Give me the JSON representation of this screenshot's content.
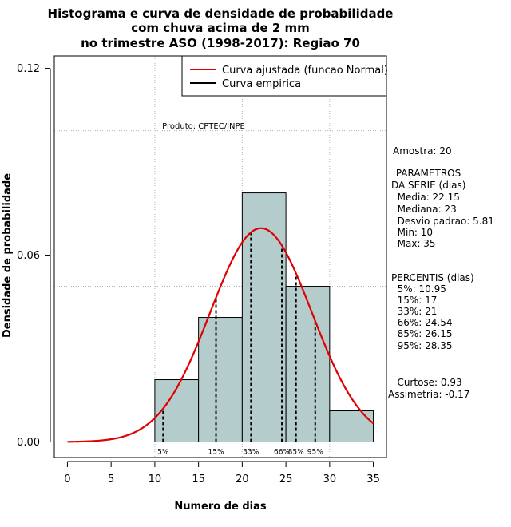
{
  "chart_data": {
    "type": "histogram",
    "title": [
      "Histograma e curva de densidade de probabilidade",
      "com chuva acima de 2 mm",
      "no trimestre ASO (1998-2017): Regiao 70"
    ],
    "xlabel": "Numero de dias",
    "ylabel": "Densidade de probabilidade",
    "xlim": [
      -1.5,
      36.5
    ],
    "ylim": [
      -0.005,
      0.124
    ],
    "xticks": [
      0,
      5,
      10,
      15,
      20,
      25,
      30,
      35
    ],
    "xtick_labels": [
      "0",
      "5",
      "10",
      "15",
      "20",
      "25",
      "30",
      "35"
    ],
    "yticks": [
      0.0,
      0.06,
      0.12
    ],
    "ytick_labels": [
      "0.00",
      "0.06",
      "0.12"
    ],
    "bins": [
      {
        "start": 10,
        "end": 15,
        "density": 0.02
      },
      {
        "start": 15,
        "end": 20,
        "density": 0.04
      },
      {
        "start": 20,
        "end": 25,
        "density": 0.08
      },
      {
        "start": 25,
        "end": 30,
        "density": 0.05
      },
      {
        "start": 30,
        "end": 35,
        "density": 0.01
      }
    ],
    "bar_color": "#b5cccc",
    "curve_color": "#e00000",
    "normal_fit": {
      "mean": 22.15,
      "sd": 5.81,
      "from": 0,
      "to": 35
    },
    "grid_x": [
      10,
      20,
      30
    ],
    "grid_y": [
      0.0,
      0.05,
      0.1
    ],
    "percentiles": [
      {
        "label": "5%",
        "x": 10.95
      },
      {
        "label": "15%",
        "x": 17
      },
      {
        "label": "33%",
        "x": 21
      },
      {
        "label": "66%",
        "x": 24.54
      },
      {
        "label": "85%",
        "x": 26.15
      },
      {
        "label": "95%",
        "x": 28.35
      }
    ],
    "legend": {
      "position": "top-right",
      "entries": [
        {
          "label": "Curva ajustada (funcao Normal)",
          "color": "#e00000"
        },
        {
          "label": "Curva empirica",
          "color": "#000000"
        }
      ]
    },
    "annotation": "Produto: CPTEC/INPE",
    "stats_text": [
      "Amostra: 20",
      " PARAMETROS",
      "DA SERIE (dias)",
      "  Media: 22.15",
      "  Mediana: 23",
      "  Desvio padrao: 5.81",
      "  Min: 10",
      "  Max: 35",
      "PERCENTIS (dias)",
      "  5%: 10.95",
      "  15%: 17",
      "  33%: 21",
      "  66%: 24.54",
      "  85%: 26.15",
      "  95%: 28.35",
      "   Curtose: 0.93",
      "Assimetria: -0.17"
    ]
  }
}
